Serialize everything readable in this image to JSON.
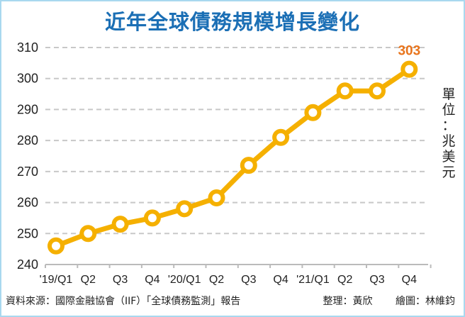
{
  "chart_data": {
    "type": "line",
    "title": "近年全球債務規模增長變化",
    "xlabel": "",
    "ylabel": "單位：兆美元",
    "categories": [
      "'19/Q1",
      "Q2",
      "Q3",
      "Q4",
      "'20/Q1",
      "Q2",
      "Q3",
      "Q4",
      "'21/Q1",
      "Q2",
      "Q3",
      "Q4"
    ],
    "series": [
      {
        "name": "全球債務規模",
        "values": [
          246,
          250,
          253,
          255,
          258,
          261.5,
          272,
          281,
          289,
          296,
          296,
          303
        ],
        "color": "#f5b000"
      }
    ],
    "ylim": [
      240,
      310
    ],
    "yticks": [
      240,
      250,
      260,
      270,
      280,
      290,
      300,
      310
    ],
    "grid": true,
    "legend": "none",
    "annotations": [
      {
        "category": "Q4",
        "index": 11,
        "text": "303",
        "color": "#e8741c"
      }
    ]
  },
  "header": {
    "title": "近年全球債務規模增長變化"
  },
  "unit_label": [
    "單",
    "位",
    "：",
    "兆",
    "美",
    "元"
  ],
  "footer": {
    "source": "資料來源：國際金融協會（IIF）「全球債務監測」報告",
    "editor": "整理：黃欣",
    "illustrator": "繪圖：林維鈞"
  },
  "colors": {
    "title": "#1b6fb5",
    "line": "#f5b000",
    "annotation": "#e8741c",
    "grid": "#c8c8c8",
    "border": "#a9d8ef"
  }
}
